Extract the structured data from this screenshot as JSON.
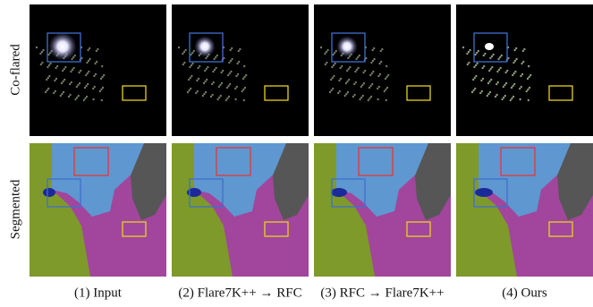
{
  "row_labels": [
    "Co-flared",
    "Segmented"
  ],
  "columns": [
    {
      "caption": "(1) Input"
    },
    {
      "caption": "(2) Flare7K++ → RFC"
    },
    {
      "caption": "(3) RFC → Flare7K++"
    },
    {
      "caption": "(4) Ours"
    }
  ]
}
